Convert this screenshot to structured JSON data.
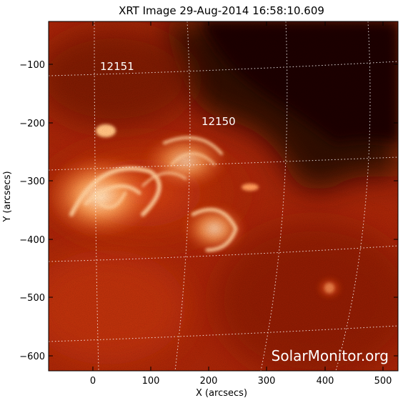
{
  "title": "XRT Image 29-Aug-2014 16:58:10.609",
  "xlabel": "X (arcsecs)",
  "ylabel": "Y (arcsecs)",
  "x_ticks": [
    "0",
    "100",
    "200",
    "300",
    "400",
    "500"
  ],
  "y_ticks": [
    "−100",
    "−200",
    "−300",
    "−400",
    "−500",
    "−600"
  ],
  "regions": [
    {
      "id": "12151",
      "label": "12151"
    },
    {
      "id": "12150",
      "label": "12150"
    }
  ],
  "watermark": "SolarMonitor.org",
  "colors": {
    "background": "#ffffff",
    "frame": "#000000",
    "grid": "#ffffff",
    "dark_region": "#2a0600",
    "mid_region": "#8a1a00",
    "bright_loop": "#ffd9a8"
  }
}
